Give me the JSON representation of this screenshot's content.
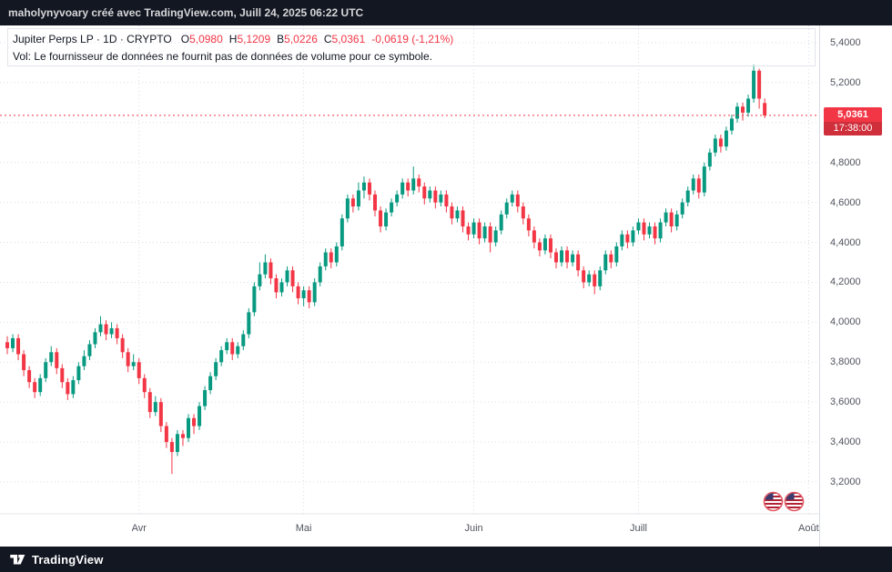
{
  "topbar": {
    "text": "maholynyvoary créé avec TradingView.com, Juill 24, 2025 06:22 UTC"
  },
  "legend": {
    "title": "Jupiter Perps LP · 1D · CRYPTO",
    "open_label": "O",
    "open": "5,0980",
    "high_label": "H",
    "high": "5,1209",
    "low_label": "B",
    "low": "5,0226",
    "close_label": "C",
    "close": "5,0361",
    "change": "-0,0619 (-1,21%)",
    "volume_note": "Vol: Le fournisseur de données ne fournit pas de données de volume pour ce symbole."
  },
  "price_scale": {
    "last_price_label": "5,0361",
    "countdown": "17:38:00"
  },
  "time_scale": {
    "months": [
      "Avr",
      "Mai",
      "Juin",
      "Juill",
      "Août"
    ]
  },
  "footer": {
    "brand": "TradingView"
  },
  "icons": {
    "event_markers": [
      "us-flag",
      "us-flag"
    ],
    "logo": "tradingview-logo"
  },
  "colors": {
    "up": "#089981",
    "down": "#f23645",
    "badge": "#f23645",
    "grid": "#d7dbe3",
    "axis_text": "#51545f",
    "topbar_bg": "#131722",
    "last_price_line": "#f23645"
  },
  "chart_data": {
    "type": "candlestick",
    "symbol": "Jupiter Perps LP",
    "interval": "1D",
    "exchange": "CRYPTO",
    "last_price": 5.0361,
    "last_ohlc": {
      "open": 5.098,
      "high": 5.1209,
      "low": 5.0226,
      "close": 5.0361,
      "change": -0.0619,
      "change_pct": -1.21
    },
    "y_axis": {
      "ticks": [
        3.2,
        3.4,
        3.6,
        3.8,
        4.0,
        4.2,
        4.4,
        4.6,
        4.8,
        5.0,
        5.2,
        5.4
      ],
      "format": "fr-4dec"
    },
    "x_axis": {
      "month_ticks": [
        {
          "label": "Avr",
          "slot": 24
        },
        {
          "label": "Mai",
          "slot": 54
        },
        {
          "label": "Juin",
          "slot": 85
        },
        {
          "label": "Juill",
          "slot": 115
        },
        {
          "label": "Août",
          "slot": 146
        }
      ]
    },
    "candles": [
      [
        3.9,
        3.93,
        3.84,
        3.87
      ],
      [
        3.87,
        3.94,
        3.85,
        3.92
      ],
      [
        3.92,
        3.94,
        3.81,
        3.84
      ],
      [
        3.84,
        3.86,
        3.73,
        3.76
      ],
      [
        3.76,
        3.78,
        3.67,
        3.7
      ],
      [
        3.7,
        3.72,
        3.62,
        3.65
      ],
      [
        3.65,
        3.74,
        3.63,
        3.72
      ],
      [
        3.72,
        3.82,
        3.7,
        3.8
      ],
      [
        3.8,
        3.88,
        3.78,
        3.85
      ],
      [
        3.85,
        3.87,
        3.74,
        3.77
      ],
      [
        3.77,
        3.79,
        3.67,
        3.7
      ],
      [
        3.7,
        3.72,
        3.61,
        3.64
      ],
      [
        3.64,
        3.73,
        3.62,
        3.71
      ],
      [
        3.71,
        3.8,
        3.69,
        3.78
      ],
      [
        3.78,
        3.86,
        3.76,
        3.83
      ],
      [
        3.83,
        3.91,
        3.81,
        3.89
      ],
      [
        3.89,
        3.97,
        3.87,
        3.95
      ],
      [
        3.95,
        4.03,
        3.93,
        3.99
      ],
      [
        3.99,
        4.01,
        3.91,
        3.94
      ],
      [
        3.94,
        4.0,
        3.92,
        3.97
      ],
      [
        3.97,
        3.99,
        3.89,
        3.92
      ],
      [
        3.92,
        3.94,
        3.82,
        3.85
      ],
      [
        3.85,
        3.87,
        3.75,
        3.78
      ],
      [
        3.78,
        3.84,
        3.76,
        3.8
      ],
      [
        3.8,
        3.82,
        3.69,
        3.72
      ],
      [
        3.72,
        3.74,
        3.62,
        3.65
      ],
      [
        3.65,
        3.67,
        3.52,
        3.55
      ],
      [
        3.55,
        3.63,
        3.53,
        3.6
      ],
      [
        3.6,
        3.62,
        3.45,
        3.48
      ],
      [
        3.48,
        3.5,
        3.37,
        3.4
      ],
      [
        3.4,
        3.42,
        3.24,
        3.35
      ],
      [
        3.35,
        3.46,
        3.33,
        3.44
      ],
      [
        3.44,
        3.46,
        3.38,
        3.42
      ],
      [
        3.42,
        3.54,
        3.4,
        3.52
      ],
      [
        3.52,
        3.54,
        3.44,
        3.48
      ],
      [
        3.48,
        3.6,
        3.46,
        3.58
      ],
      [
        3.58,
        3.68,
        3.56,
        3.66
      ],
      [
        3.66,
        3.75,
        3.64,
        3.73
      ],
      [
        3.73,
        3.82,
        3.71,
        3.8
      ],
      [
        3.8,
        3.88,
        3.78,
        3.86
      ],
      [
        3.86,
        3.92,
        3.84,
        3.9
      ],
      [
        3.9,
        3.92,
        3.81,
        3.84
      ],
      [
        3.84,
        3.9,
        3.82,
        3.88
      ],
      [
        3.88,
        3.96,
        3.86,
        3.94
      ],
      [
        3.94,
        4.07,
        3.92,
        4.05
      ],
      [
        4.05,
        4.2,
        4.03,
        4.18
      ],
      [
        4.18,
        4.3,
        4.16,
        4.24
      ],
      [
        4.24,
        4.34,
        4.22,
        4.3
      ],
      [
        4.3,
        4.32,
        4.19,
        4.22
      ],
      [
        4.22,
        4.24,
        4.12,
        4.15
      ],
      [
        4.15,
        4.22,
        4.13,
        4.2
      ],
      [
        4.2,
        4.28,
        4.18,
        4.26
      ],
      [
        4.26,
        4.28,
        4.15,
        4.18
      ],
      [
        4.18,
        4.2,
        4.09,
        4.12
      ],
      [
        4.12,
        4.18,
        4.08,
        4.16
      ],
      [
        4.16,
        4.18,
        4.07,
        4.1
      ],
      [
        4.1,
        4.22,
        4.08,
        4.2
      ],
      [
        4.2,
        4.3,
        4.18,
        4.28
      ],
      [
        4.28,
        4.37,
        4.26,
        4.35
      ],
      [
        4.35,
        4.37,
        4.27,
        4.3
      ],
      [
        4.3,
        4.4,
        4.28,
        4.38
      ],
      [
        4.38,
        4.54,
        4.36,
        4.52
      ],
      [
        4.52,
        4.64,
        4.5,
        4.62
      ],
      [
        4.62,
        4.64,
        4.55,
        4.58
      ],
      [
        4.58,
        4.7,
        4.56,
        4.66
      ],
      [
        4.66,
        4.73,
        4.62,
        4.7
      ],
      [
        4.7,
        4.72,
        4.61,
        4.64
      ],
      [
        4.64,
        4.66,
        4.53,
        4.56
      ],
      [
        4.56,
        4.58,
        4.45,
        4.48
      ],
      [
        4.48,
        4.57,
        4.46,
        4.55
      ],
      [
        4.55,
        4.62,
        4.53,
        4.6
      ],
      [
        4.6,
        4.66,
        4.58,
        4.64
      ],
      [
        4.64,
        4.72,
        4.62,
        4.7
      ],
      [
        4.7,
        4.72,
        4.63,
        4.66
      ],
      [
        4.66,
        4.78,
        4.64,
        4.72
      ],
      [
        4.72,
        4.74,
        4.65,
        4.68
      ],
      [
        4.68,
        4.7,
        4.59,
        4.62
      ],
      [
        4.62,
        4.68,
        4.6,
        4.66
      ],
      [
        4.66,
        4.68,
        4.57,
        4.6
      ],
      [
        4.6,
        4.66,
        4.58,
        4.64
      ],
      [
        4.64,
        4.66,
        4.55,
        4.58
      ],
      [
        4.58,
        4.6,
        4.49,
        4.52
      ],
      [
        4.52,
        4.58,
        4.5,
        4.56
      ],
      [
        4.56,
        4.58,
        4.45,
        4.48
      ],
      [
        4.48,
        4.5,
        4.41,
        4.44
      ],
      [
        4.44,
        4.52,
        4.42,
        4.5
      ],
      [
        4.5,
        4.52,
        4.39,
        4.42
      ],
      [
        4.42,
        4.5,
        4.4,
        4.48
      ],
      [
        4.48,
        4.5,
        4.35,
        4.4
      ],
      [
        4.4,
        4.48,
        4.38,
        4.46
      ],
      [
        4.46,
        4.56,
        4.44,
        4.54
      ],
      [
        4.54,
        4.62,
        4.52,
        4.6
      ],
      [
        4.6,
        4.66,
        4.58,
        4.64
      ],
      [
        4.64,
        4.66,
        4.55,
        4.58
      ],
      [
        4.58,
        4.6,
        4.49,
        4.52
      ],
      [
        4.52,
        4.54,
        4.43,
        4.46
      ],
      [
        4.46,
        4.48,
        4.37,
        4.4
      ],
      [
        4.4,
        4.42,
        4.33,
        4.36
      ],
      [
        4.36,
        4.44,
        4.34,
        4.42
      ],
      [
        4.42,
        4.44,
        4.32,
        4.35
      ],
      [
        4.35,
        4.37,
        4.27,
        4.3
      ],
      [
        4.3,
        4.38,
        4.28,
        4.36
      ],
      [
        4.36,
        4.38,
        4.27,
        4.3
      ],
      [
        4.3,
        4.36,
        4.28,
        4.34
      ],
      [
        4.34,
        4.36,
        4.23,
        4.26
      ],
      [
        4.26,
        4.28,
        4.17,
        4.2
      ],
      [
        4.2,
        4.26,
        4.18,
        4.24
      ],
      [
        4.24,
        4.26,
        4.14,
        4.18
      ],
      [
        4.18,
        4.28,
        4.16,
        4.26
      ],
      [
        4.26,
        4.36,
        4.24,
        4.34
      ],
      [
        4.34,
        4.36,
        4.27,
        4.3
      ],
      [
        4.3,
        4.4,
        4.28,
        4.38
      ],
      [
        4.38,
        4.46,
        4.36,
        4.44
      ],
      [
        4.44,
        4.46,
        4.37,
        4.4
      ],
      [
        4.4,
        4.48,
        4.38,
        4.46
      ],
      [
        4.46,
        4.52,
        4.44,
        4.5
      ],
      [
        4.5,
        4.52,
        4.41,
        4.44
      ],
      [
        4.44,
        4.5,
        4.42,
        4.48
      ],
      [
        4.48,
        4.5,
        4.39,
        4.42
      ],
      [
        4.42,
        4.52,
        4.4,
        4.5
      ],
      [
        4.5,
        4.57,
        4.48,
        4.55
      ],
      [
        4.55,
        4.57,
        4.45,
        4.48
      ],
      [
        4.48,
        4.56,
        4.46,
        4.54
      ],
      [
        4.54,
        4.62,
        4.52,
        4.6
      ],
      [
        4.6,
        4.68,
        4.58,
        4.66
      ],
      [
        4.66,
        4.74,
        4.64,
        4.72
      ],
      [
        4.72,
        4.74,
        4.62,
        4.65
      ],
      [
        4.65,
        4.8,
        4.63,
        4.78
      ],
      [
        4.78,
        4.87,
        4.76,
        4.85
      ],
      [
        4.85,
        4.94,
        4.83,
        4.92
      ],
      [
        4.92,
        4.94,
        4.85,
        4.88
      ],
      [
        4.88,
        4.98,
        4.86,
        4.96
      ],
      [
        4.96,
        5.04,
        4.94,
        5.02
      ],
      [
        5.02,
        5.1,
        5.0,
        5.08
      ],
      [
        5.08,
        5.1,
        5.01,
        5.05
      ],
      [
        5.05,
        5.14,
        5.03,
        5.12
      ],
      [
        5.12,
        5.29,
        5.1,
        5.26
      ],
      [
        5.26,
        5.27,
        5.07,
        5.12
      ],
      [
        5.098,
        5.1209,
        5.0226,
        5.0361
      ]
    ]
  }
}
